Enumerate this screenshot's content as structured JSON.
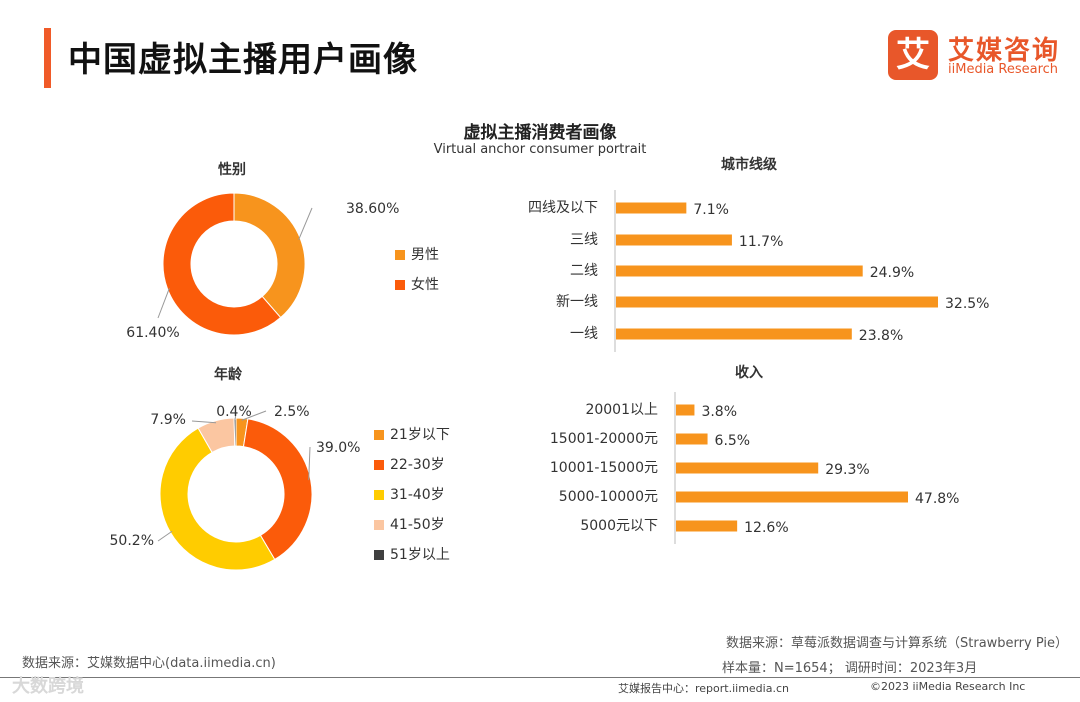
{
  "header": {
    "title": "中国虚拟主播用户画像",
    "logo_mark": "艾",
    "logo_cn": "艾媒咨询",
    "logo_en": "iiMedia Research"
  },
  "colors": {
    "accent": "#f05a28",
    "orange": "#f7941d",
    "dark_orange": "#fb5b0a",
    "yellow": "#ffcc00",
    "peach": "#fbc6a1",
    "dark": "#404040"
  },
  "chart_data": [
    {
      "type": "pie",
      "id": "gender",
      "title": "虚拟主播消费者画像",
      "subtitle": "Virtual anchor consumer portrait",
      "panel_title": "性别",
      "categories": [
        "男性",
        "女性"
      ],
      "values": [
        38.6,
        61.4
      ],
      "value_labels": [
        "38.60%",
        "61.40%"
      ],
      "legend_position": "right"
    },
    {
      "type": "pie",
      "id": "age",
      "panel_title": "年龄",
      "categories": [
        "21岁以下",
        "22-30岁",
        "31-40岁",
        "41-50岁",
        "51岁以上"
      ],
      "values": [
        2.5,
        39.0,
        50.2,
        7.9,
        0.4
      ],
      "value_labels": [
        "2.5%",
        "39.0%",
        "50.2%",
        "7.9%",
        "0.4%"
      ],
      "legend_position": "right"
    },
    {
      "type": "bar",
      "id": "city",
      "orientation": "horizontal",
      "panel_title": "城市线级",
      "categories": [
        "四线及以下",
        "三线",
        "二线",
        "新一线",
        "一线"
      ],
      "values": [
        7.1,
        11.7,
        24.9,
        32.5,
        23.8
      ],
      "value_labels": [
        "7.1%",
        "11.7%",
        "24.9%",
        "32.5%",
        "23.8%"
      ],
      "xlim": [
        0,
        32.5
      ]
    },
    {
      "type": "bar",
      "id": "income",
      "orientation": "horizontal",
      "panel_title": "收入",
      "categories": [
        "20001以上",
        "15001-20000元",
        "10001-15000元",
        "5000-10000元",
        "5000元以下"
      ],
      "values": [
        3.8,
        6.5,
        29.3,
        47.8,
        12.6
      ],
      "value_labels": [
        "3.8%",
        "6.5%",
        "29.3%",
        "47.8%",
        "12.6%"
      ],
      "xlim": [
        0,
        47.8
      ]
    }
  ],
  "footer": {
    "source_left": "数据来源：艾媒数据中心(data.iimedia.cn)",
    "source_right": "数据来源：草莓派数据调查与计算系统（Strawberry Pie）",
    "sample": "样本量：N=1654；  调研时间：2023年3月",
    "report": "艾媒报告中心：report.iimedia.cn",
    "copyright": "©2023  iiMedia Research  Inc",
    "watermark": "大数跨境"
  }
}
